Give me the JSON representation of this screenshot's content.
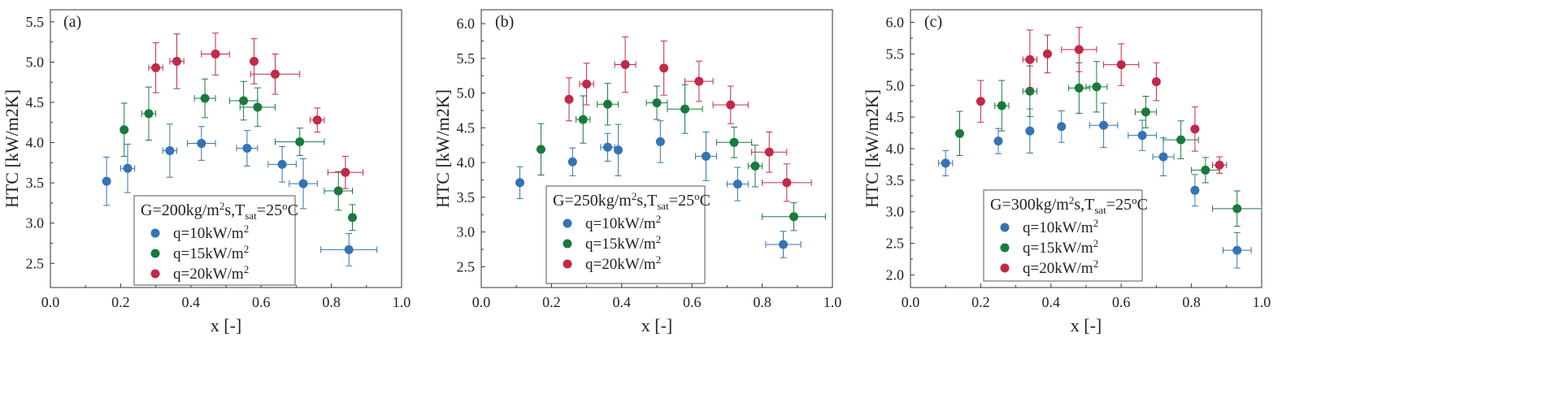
{
  "chart_data": [
    {
      "type": "scatter",
      "panel_label": "(a)",
      "xlabel": "x [-]",
      "ylabel": "HTC [kW/m2K]",
      "xlim": [
        0.0,
        1.0
      ],
      "ylim": [
        2.2,
        5.65
      ],
      "xticks": [
        0.0,
        0.2,
        0.4,
        0.6,
        0.8,
        1.0
      ],
      "xtick_labels": [
        "0.0",
        "0.2",
        "0.4",
        "0.6",
        "0.8",
        "1.0"
      ],
      "yticks": [
        2.5,
        3.0,
        3.5,
        4.0,
        4.5,
        5.0,
        5.5
      ],
      "ytick_labels": [
        "2.5",
        "3.0",
        "3.5",
        "4.0",
        "4.5",
        "5.0",
        "5.5"
      ],
      "legend_title": "G=200kg/m2s,Tsat=25oC",
      "legend_title_parts": {
        "a": "G=200kg/m",
        "b": "2",
        "c": "s,T",
        "d": "sat",
        "e": "=25",
        "f": "o",
        "g": "C"
      },
      "series": [
        {
          "name": "q=10kW/m2",
          "label_base": "q=10kW/m",
          "label_sup": "2",
          "color": "#3473b4",
          "points": [
            {
              "x": 0.16,
              "y": 3.52,
              "xerr": 0.0,
              "yerr": 0.3
            },
            {
              "x": 0.22,
              "y": 3.68,
              "xerr": 0.02,
              "yerr": 0.3
            },
            {
              "x": 0.34,
              "y": 3.9,
              "xerr": 0.02,
              "yerr": 0.33
            },
            {
              "x": 0.43,
              "y": 3.99,
              "xerr": 0.04,
              "yerr": 0.21
            },
            {
              "x": 0.56,
              "y": 3.93,
              "xerr": 0.03,
              "yerr": 0.22
            },
            {
              "x": 0.66,
              "y": 3.73,
              "xerr": 0.04,
              "yerr": 0.22
            },
            {
              "x": 0.72,
              "y": 3.49,
              "xerr": 0.04,
              "yerr": 0.31
            },
            {
              "x": 0.85,
              "y": 2.67,
              "xerr": 0.08,
              "yerr": 0.2
            }
          ]
        },
        {
          "name": "q=15kW/m2",
          "label_base": "q=15kW/m",
          "label_sup": "2",
          "color": "#1a7a3e",
          "points": [
            {
              "x": 0.21,
              "y": 4.16,
              "xerr": 0.0,
              "yerr": 0.33
            },
            {
              "x": 0.28,
              "y": 4.36,
              "xerr": 0.02,
              "yerr": 0.33
            },
            {
              "x": 0.44,
              "y": 4.55,
              "xerr": 0.03,
              "yerr": 0.24
            },
            {
              "x": 0.55,
              "y": 4.52,
              "xerr": 0.04,
              "yerr": 0.24
            },
            {
              "x": 0.59,
              "y": 4.44,
              "xerr": 0.05,
              "yerr": 0.24
            },
            {
              "x": 0.71,
              "y": 4.01,
              "xerr": 0.07,
              "yerr": 0.17
            },
            {
              "x": 0.82,
              "y": 3.4,
              "xerr": 0.04,
              "yerr": 0.24
            },
            {
              "x": 0.86,
              "y": 3.07,
              "xerr": 0.0,
              "yerr": 0.16
            }
          ]
        },
        {
          "name": "q=20kW/m2",
          "label_base": "q=20kW/m",
          "label_sup": "2",
          "color": "#c0294a",
          "points": [
            {
              "x": 0.3,
              "y": 4.93,
              "xerr": 0.02,
              "yerr": 0.31
            },
            {
              "x": 0.36,
              "y": 5.01,
              "xerr": 0.02,
              "yerr": 0.34
            },
            {
              "x": 0.47,
              "y": 5.1,
              "xerr": 0.04,
              "yerr": 0.26
            },
            {
              "x": 0.58,
              "y": 5.01,
              "xerr": 0.0,
              "yerr": 0.28
            },
            {
              "x": 0.64,
              "y": 4.85,
              "xerr": 0.07,
              "yerr": 0.25
            },
            {
              "x": 0.76,
              "y": 4.28,
              "xerr": 0.02,
              "yerr": 0.15
            },
            {
              "x": 0.84,
              "y": 3.63,
              "xerr": 0.05,
              "yerr": 0.2
            }
          ]
        }
      ]
    },
    {
      "type": "scatter",
      "panel_label": "(b)",
      "xlabel": "x [-]",
      "ylabel": "HTC [kW/m2K]",
      "xlim": [
        0.0,
        1.0
      ],
      "ylim": [
        2.2,
        6.2
      ],
      "xticks": [
        0.0,
        0.2,
        0.4,
        0.6,
        0.8,
        1.0
      ],
      "xtick_labels": [
        "0.0",
        "0.2",
        "0.4",
        "0.6",
        "0.8",
        "1.0"
      ],
      "yticks": [
        2.5,
        3.0,
        3.5,
        4.0,
        4.5,
        5.0,
        5.5,
        6.0
      ],
      "ytick_labels": [
        "2.5",
        "3.0",
        "3.5",
        "4.0",
        "4.5",
        "5.0",
        "5.5",
        "6.0"
      ],
      "legend_title": "G=250kg/m2s,Tsat=25oC",
      "legend_title_parts": {
        "a": "G=250kg/m",
        "b": "2",
        "c": "s,T",
        "d": "sat",
        "e": "=25",
        "f": "o",
        "g": "C"
      },
      "series": [
        {
          "name": "q=10kW/m2",
          "label_base": "q=10kW/m",
          "label_sup": "2",
          "color": "#3473b4",
          "points": [
            {
              "x": 0.11,
              "y": 3.71,
              "xerr": 0.0,
              "yerr": 0.23
            },
            {
              "x": 0.26,
              "y": 4.01,
              "xerr": 0.0,
              "yerr": 0.2
            },
            {
              "x": 0.36,
              "y": 4.22,
              "xerr": 0.02,
              "yerr": 0.2
            },
            {
              "x": 0.39,
              "y": 4.18,
              "xerr": 0.0,
              "yerr": 0.37
            },
            {
              "x": 0.51,
              "y": 4.3,
              "xerr": 0.0,
              "yerr": 0.3
            },
            {
              "x": 0.64,
              "y": 4.09,
              "xerr": 0.03,
              "yerr": 0.35
            },
            {
              "x": 0.73,
              "y": 3.69,
              "xerr": 0.03,
              "yerr": 0.24
            },
            {
              "x": 0.86,
              "y": 2.82,
              "xerr": 0.05,
              "yerr": 0.19
            }
          ]
        },
        {
          "name": "q=15kW/m2",
          "label_base": "q=15kW/m",
          "label_sup": "2",
          "color": "#1a7a3e",
          "points": [
            {
              "x": 0.17,
              "y": 4.19,
              "xerr": 0.0,
              "yerr": 0.37
            },
            {
              "x": 0.29,
              "y": 4.62,
              "xerr": 0.02,
              "yerr": 0.34
            },
            {
              "x": 0.36,
              "y": 4.84,
              "xerr": 0.03,
              "yerr": 0.3
            },
            {
              "x": 0.5,
              "y": 4.86,
              "xerr": 0.03,
              "yerr": 0.24
            },
            {
              "x": 0.58,
              "y": 4.77,
              "xerr": 0.05,
              "yerr": 0.35
            },
            {
              "x": 0.72,
              "y": 4.29,
              "xerr": 0.05,
              "yerr": 0.22
            },
            {
              "x": 0.78,
              "y": 3.95,
              "xerr": 0.02,
              "yerr": 0.3
            },
            {
              "x": 0.89,
              "y": 3.22,
              "xerr": 0.09,
              "yerr": 0.2
            }
          ]
        },
        {
          "name": "q=20kW/m2",
          "label_base": "q=20kW/m",
          "label_sup": "2",
          "color": "#c0294a",
          "points": [
            {
              "x": 0.25,
              "y": 4.91,
              "xerr": 0.0,
              "yerr": 0.31
            },
            {
              "x": 0.3,
              "y": 5.13,
              "xerr": 0.02,
              "yerr": 0.3
            },
            {
              "x": 0.41,
              "y": 5.41,
              "xerr": 0.03,
              "yerr": 0.4
            },
            {
              "x": 0.52,
              "y": 5.36,
              "xerr": 0.0,
              "yerr": 0.39
            },
            {
              "x": 0.62,
              "y": 5.17,
              "xerr": 0.04,
              "yerr": 0.29
            },
            {
              "x": 0.71,
              "y": 4.83,
              "xerr": 0.05,
              "yerr": 0.27
            },
            {
              "x": 0.82,
              "y": 4.15,
              "xerr": 0.05,
              "yerr": 0.29
            },
            {
              "x": 0.87,
              "y": 3.71,
              "xerr": 0.07,
              "yerr": 0.27
            }
          ]
        }
      ]
    },
    {
      "type": "scatter",
      "panel_label": "(c)",
      "xlabel": "x [-]",
      "ylabel": "HTC [kW/m2K]",
      "xlim": [
        0.0,
        1.0
      ],
      "ylim": [
        1.8,
        6.2
      ],
      "xticks": [
        0.0,
        0.2,
        0.4,
        0.6,
        0.8,
        1.0
      ],
      "xtick_labels": [
        "0.0",
        "0.2",
        "0.4",
        "0.6",
        "0.8",
        "1.0"
      ],
      "yticks": [
        2.0,
        2.5,
        3.0,
        3.5,
        4.0,
        4.5,
        5.0,
        5.5,
        6.0
      ],
      "ytick_labels": [
        "2.0",
        "2.5",
        "3.0",
        "3.5",
        "4.0",
        "4.5",
        "5.0",
        "5.5",
        "6.0"
      ],
      "legend_title": "G=300kg/m2s,Tsat=25oC",
      "legend_title_parts": {
        "a": "G=300kg/m",
        "b": "2",
        "c": "s,T",
        "d": "sat",
        "e": "=25",
        "f": "o",
        "g": "C"
      },
      "series": [
        {
          "name": "q=10kW/m2",
          "label_base": "q=10kW/m",
          "label_sup": "2",
          "color": "#3473b4",
          "points": [
            {
              "x": 0.1,
              "y": 3.77,
              "xerr": 0.02,
              "yerr": 0.2
            },
            {
              "x": 0.25,
              "y": 4.12,
              "xerr": 0.0,
              "yerr": 0.2
            },
            {
              "x": 0.34,
              "y": 4.28,
              "xerr": 0.0,
              "yerr": 0.35
            },
            {
              "x": 0.43,
              "y": 4.35,
              "xerr": 0.0,
              "yerr": 0.25
            },
            {
              "x": 0.55,
              "y": 4.37,
              "xerr": 0.04,
              "yerr": 0.35
            },
            {
              "x": 0.66,
              "y": 4.21,
              "xerr": 0.04,
              "yerr": 0.24
            },
            {
              "x": 0.72,
              "y": 3.87,
              "xerr": 0.03,
              "yerr": 0.3
            },
            {
              "x": 0.81,
              "y": 3.34,
              "xerr": 0.0,
              "yerr": 0.25
            },
            {
              "x": 0.93,
              "y": 2.39,
              "xerr": 0.04,
              "yerr": 0.28
            }
          ]
        },
        {
          "name": "q=15kW/m2",
          "label_base": "q=15kW/m",
          "label_sup": "2",
          "color": "#1a7a3e",
          "points": [
            {
              "x": 0.14,
              "y": 4.24,
              "xerr": 0.0,
              "yerr": 0.35
            },
            {
              "x": 0.26,
              "y": 4.68,
              "xerr": 0.02,
              "yerr": 0.4
            },
            {
              "x": 0.34,
              "y": 4.91,
              "xerr": 0.02,
              "yerr": 0.4
            },
            {
              "x": 0.48,
              "y": 4.96,
              "xerr": 0.03,
              "yerr": 0.4
            },
            {
              "x": 0.53,
              "y": 4.98,
              "xerr": 0.03,
              "yerr": 0.4
            },
            {
              "x": 0.67,
              "y": 4.58,
              "xerr": 0.03,
              "yerr": 0.25
            },
            {
              "x": 0.77,
              "y": 4.14,
              "xerr": 0.05,
              "yerr": 0.3
            },
            {
              "x": 0.84,
              "y": 3.66,
              "xerr": 0.04,
              "yerr": 0.2
            },
            {
              "x": 0.93,
              "y": 3.05,
              "xerr": 0.07,
              "yerr": 0.28
            }
          ]
        },
        {
          "name": "q=20kW/m2",
          "label_base": "q=20kW/m",
          "label_sup": "2",
          "color": "#c0294a",
          "points": [
            {
              "x": 0.2,
              "y": 4.75,
              "xerr": 0.0,
              "yerr": 0.33
            },
            {
              "x": 0.34,
              "y": 5.41,
              "xerr": 0.02,
              "yerr": 0.47
            },
            {
              "x": 0.39,
              "y": 5.5,
              "xerr": 0.0,
              "yerr": 0.3
            },
            {
              "x": 0.48,
              "y": 5.57,
              "xerr": 0.05,
              "yerr": 0.35
            },
            {
              "x": 0.6,
              "y": 5.33,
              "xerr": 0.05,
              "yerr": 0.33
            },
            {
              "x": 0.7,
              "y": 5.06,
              "xerr": 0.0,
              "yerr": 0.3
            },
            {
              "x": 0.81,
              "y": 4.31,
              "xerr": 0.0,
              "yerr": 0.35
            },
            {
              "x": 0.88,
              "y": 3.74,
              "xerr": 0.02,
              "yerr": 0.13
            }
          ]
        }
      ]
    }
  ]
}
